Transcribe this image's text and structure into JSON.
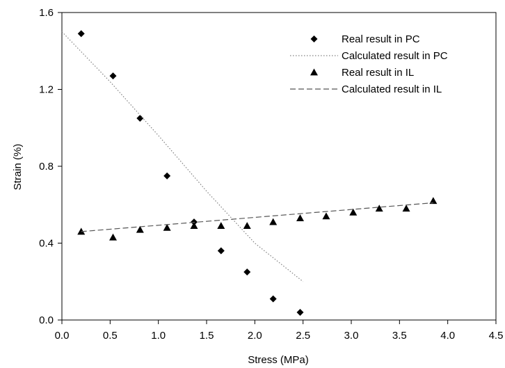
{
  "chart_data": {
    "type": "scatter",
    "xlabel": "Stress (MPa)",
    "ylabel": "Strain (%)",
    "xlim": [
      0,
      4.5
    ],
    "ylim": [
      0,
      1.6
    ],
    "xticks": [
      0.0,
      0.5,
      1.0,
      1.5,
      2.0,
      2.5,
      3.0,
      3.5,
      4.0,
      4.5
    ],
    "yticks": [
      0.0,
      0.4,
      0.8,
      1.2,
      1.6
    ],
    "xtick_labels": [
      "0.0",
      "0.5",
      "1.0",
      "1.5",
      "2.0",
      "2.5",
      "3.0",
      "3.5",
      "4.0",
      "4.5"
    ],
    "ytick_labels": [
      "0.0",
      "0.4",
      "0.8",
      "1.2",
      "1.6"
    ],
    "grid": false,
    "legend_position": "top-right",
    "series": [
      {
        "name": "Real result in PC",
        "kind": "scatter",
        "marker": "diamond",
        "color": "#000000",
        "x": [
          0.2,
          0.53,
          0.81,
          1.09,
          1.37,
          1.65,
          1.92,
          2.19,
          2.47
        ],
        "y": [
          1.49,
          1.27,
          1.05,
          0.75,
          0.51,
          0.36,
          0.25,
          0.11,
          0.04
        ]
      },
      {
        "name": "Calculated result in PC",
        "kind": "line",
        "dash": "dotted",
        "color": "#808080",
        "x": [
          0.0,
          0.5,
          1.0,
          1.5,
          2.0,
          2.5
        ],
        "y": [
          1.5,
          1.24,
          0.96,
          0.67,
          0.4,
          0.2
        ]
      },
      {
        "name": "Real result in IL",
        "kind": "scatter",
        "marker": "triangle",
        "color": "#000000",
        "x": [
          0.2,
          0.53,
          0.81,
          1.09,
          1.37,
          1.65,
          1.92,
          2.19,
          2.47,
          2.74,
          3.02,
          3.29,
          3.57,
          3.85
        ],
        "y": [
          0.46,
          0.43,
          0.47,
          0.48,
          0.49,
          0.49,
          0.49,
          0.51,
          0.53,
          0.54,
          0.56,
          0.58,
          0.58,
          0.62
        ]
      },
      {
        "name": "Calculated result in IL",
        "kind": "line",
        "dash": "dashed",
        "color": "#555555",
        "x": [
          0.2,
          3.85
        ],
        "y": [
          0.46,
          0.61
        ]
      }
    ]
  }
}
